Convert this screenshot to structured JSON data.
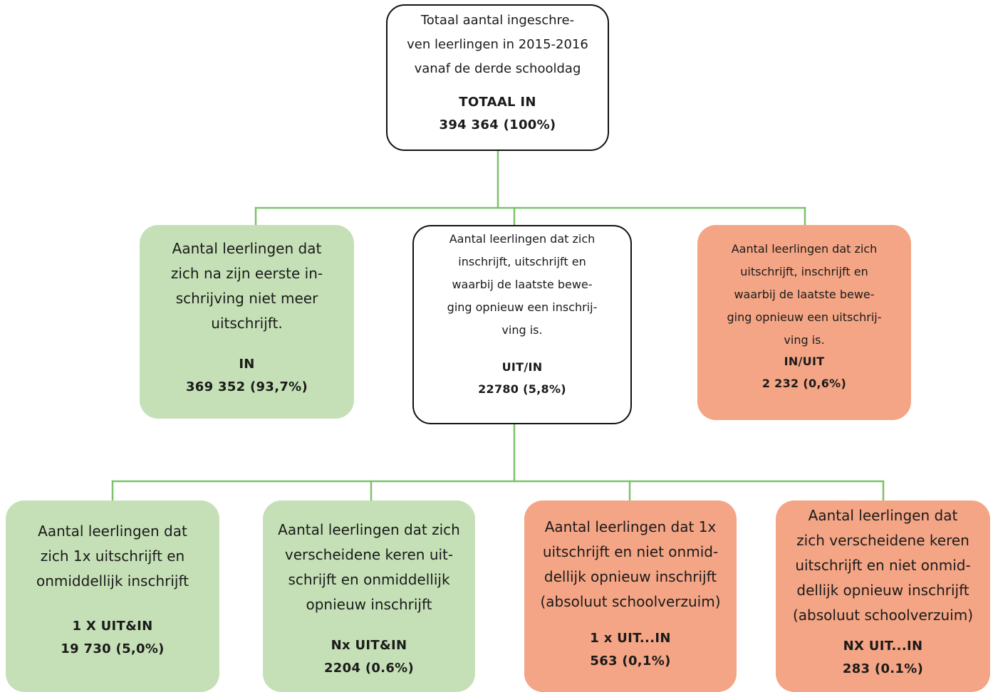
{
  "colors": {
    "connector": "#7cc36a",
    "green_box": "#c5e0b6",
    "orange_box": "#f4a585",
    "white_box_border": "#111111"
  },
  "nodes": {
    "root": {
      "description": "Totaal aantal ingeschre-\nven leerlingen in 2015-2016\nvanaf de derde schooldag",
      "label": "TOTAAL IN",
      "value": "394 364 (100%)"
    },
    "in": {
      "description": "Aantal leerlingen dat\nzich na zijn eerste in-\nschrijving niet meer\nuitschrijft.",
      "label": "IN",
      "value": "369 352 (93,7%)"
    },
    "uit_in": {
      "description": "Aantal leerlingen dat zich\ninschrijft, uitschrijft en\nwaarbij de laatste bewe-\nging opnieuw een inschrij-\nving is.",
      "label": "UIT/IN",
      "value": "22780 (5,8%)"
    },
    "in_uit": {
      "description": "Aantal leerlingen dat zich\nuitschrijft, inschrijft  en\nwaarbij de laatste bewe-\nging opnieuw een uitschrij-\nving is.",
      "label": "IN/UIT",
      "value": "2 232 (0,6%)"
    },
    "one_x_uit_in": {
      "description": "Aantal leerlingen dat\nzich 1x uitschrijft en\nonmiddellijk inschrijft",
      "label": "1 X UIT&IN",
      "value": "19 730 (5,0%)"
    },
    "nx_uit_in": {
      "description": "Aantal leerlingen dat zich\nverscheidene keren uit-\nschrijft en onmiddellijk\nopnieuw inschrijft",
      "label": "Nx UIT&IN",
      "value": "2204 (0.6%)"
    },
    "one_x_uit_dots_in": {
      "description": "Aantal leerlingen dat 1x\nuitschrijft en niet onmid-\ndellijk opnieuw inschrijft\n(absoluut schoolverzuim)",
      "label": "1 x UIT...IN",
      "value": "563 (0,1%)"
    },
    "nx_uit_dots_in": {
      "description": "Aantal leerlingen dat\nzich verscheidene keren\nuitschrijft en niet onmid-\ndellijk opnieuw inschrijft\n(absoluut schoolverzuim)",
      "label": "NX UIT...IN",
      "value": "283 (0.1%)"
    }
  }
}
